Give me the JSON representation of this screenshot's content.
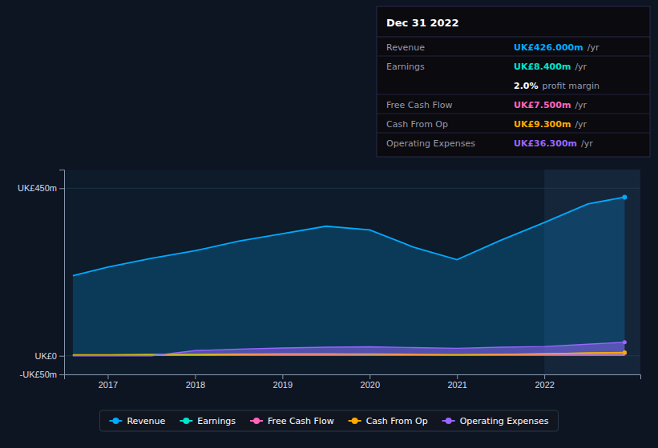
{
  "chart_data": {
    "type": "area",
    "x": [
      2016.6,
      2017.0,
      2017.5,
      2018.0,
      2018.5,
      2019.0,
      2019.5,
      2020.0,
      2020.5,
      2021.0,
      2021.5,
      2022.0,
      2022.5,
      2022.92
    ],
    "series": [
      {
        "name": "Revenue",
        "color": "#00aaff",
        "values": [
          215,
          238,
          262,
          282,
          308,
          328,
          348,
          338,
          292,
          258,
          310,
          358,
          408,
          426
        ]
      },
      {
        "name": "Earnings",
        "color": "#00e5cc",
        "values": [
          3,
          3,
          4,
          4,
          5,
          5,
          5,
          4,
          3,
          3,
          4,
          6,
          7,
          8.4
        ]
      },
      {
        "name": "Free Cash Flow",
        "color": "#ff66bb",
        "values": [
          1,
          1,
          2,
          2,
          3,
          4,
          4,
          4,
          3,
          2,
          3,
          4,
          6,
          7.5
        ]
      },
      {
        "name": "Cash From Op",
        "color": "#ffaa00",
        "values": [
          2,
          2,
          3,
          3,
          4,
          5,
          5,
          5,
          4,
          3,
          4,
          5,
          8,
          9.3
        ]
      },
      {
        "name": "Operating Expenses",
        "color": "#9966ff",
        "values": [
          0,
          0,
          0,
          14,
          18,
          21,
          23,
          24,
          22,
          20,
          23,
          25,
          31,
          36.3
        ]
      }
    ],
    "xlim": [
      2016.5,
      2023.1
    ],
    "xticks": [
      2017,
      2018,
      2019,
      2020,
      2021,
      2022
    ],
    "ylim": [
      -50,
      500
    ],
    "yticks": [
      {
        "value": -50,
        "label": "-UK£50m"
      },
      {
        "value": 0,
        "label": "UK£0"
      },
      {
        "value": 450,
        "label": "UK£450m"
      }
    ],
    "grid": true,
    "legend": "bottom",
    "highlight_x_start": 2022.0,
    "info_box": {
      "title": "Dec 31 2022",
      "rows": [
        {
          "label": "Revenue",
          "value": "UK£426.000m",
          "color": "#00aaff",
          "suffix": "/yr"
        },
        {
          "label": "Earnings",
          "value": "UK£8.400m",
          "color": "#00e5cc",
          "suffix": "/yr"
        },
        {
          "value": "2.0%",
          "color": "#ffffff",
          "suffix": "profit margin"
        },
        {
          "label": "Free Cash Flow",
          "value": "UK£7.500m",
          "color": "#ff66bb",
          "suffix": "/yr"
        },
        {
          "label": "Cash From Op",
          "value": "UK£9.300m",
          "color": "#ffaa00",
          "suffix": "/yr"
        },
        {
          "label": "Operating Expenses",
          "value": "UK£36.300m",
          "color": "#9966ff",
          "suffix": "/yr"
        }
      ]
    }
  }
}
